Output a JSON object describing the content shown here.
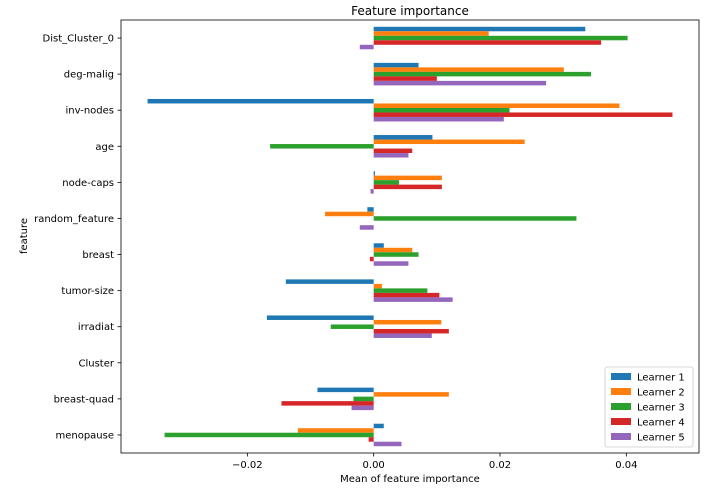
{
  "chart_data": {
    "type": "bar",
    "orientation": "horizontal",
    "title": "Feature importance",
    "xlabel": "Mean of feature importance",
    "ylabel": "feature",
    "xlim": [
      -0.04,
      0.0515
    ],
    "xticks": [
      -0.02,
      0.0,
      0.02,
      0.04
    ],
    "xtick_labels": [
      "−0.02",
      "0.00",
      "0.02",
      "0.04"
    ],
    "grid": false,
    "legend_position": "lower-right",
    "categories": [
      "Dist_Cluster_0",
      "deg-malig",
      "inv-nodes",
      "age",
      "node-caps",
      "random_feature",
      "breast",
      "tumor-size",
      "irradiat",
      "Cluster",
      "breast-quad",
      "menopause"
    ],
    "series": [
      {
        "name": "Learner 1",
        "color": "#1f77b4",
        "values": [
          0.0335,
          0.0071,
          -0.0358,
          0.0093,
          0.0002,
          -0.001,
          0.0016,
          -0.0139,
          -0.0169,
          0.0,
          -0.0089,
          0.0016
        ]
      },
      {
        "name": "Learner 2",
        "color": "#ff7f0e",
        "values": [
          0.0182,
          0.0301,
          0.0389,
          0.0239,
          0.0108,
          -0.0077,
          0.0061,
          0.0013,
          0.0107,
          0.0,
          0.0119,
          -0.012
        ]
      },
      {
        "name": "Learner 3",
        "color": "#2ca02c",
        "values": [
          0.0402,
          0.0344,
          0.0215,
          -0.0164,
          0.004,
          0.0321,
          0.0071,
          0.0085,
          -0.0068,
          0.0,
          -0.0032,
          -0.0331
        ]
      },
      {
        "name": "Learner 4",
        "color": "#d62728",
        "values": [
          0.036,
          0.01,
          0.0473,
          0.0061,
          0.0108,
          0.0,
          -0.0006,
          0.0104,
          0.0119,
          0.0,
          -0.0146,
          -0.0008
        ]
      },
      {
        "name": "Learner 5",
        "color": "#9467bd",
        "values": [
          -0.0022,
          0.0273,
          0.0206,
          0.0055,
          -0.0005,
          -0.0022,
          0.0055,
          0.0125,
          0.0092,
          0.0,
          -0.0035,
          0.0044
        ]
      }
    ]
  }
}
